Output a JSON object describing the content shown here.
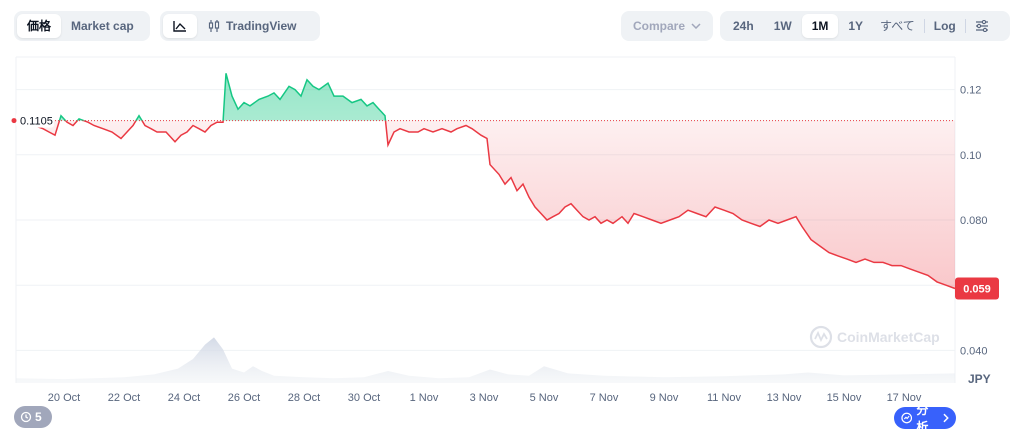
{
  "toolbar": {
    "price_tab": "価格",
    "marketcap_tab": "Market cap",
    "tradingview_label": "TradingView",
    "compare_label": "Compare",
    "ranges": [
      "24h",
      "1W",
      "1M",
      "1Y",
      "すべて"
    ],
    "active_range": "1M",
    "log_label": "Log"
  },
  "footer": {
    "events_count": "5",
    "analysis_label": "分析"
  },
  "watermark": "CoinMarketCap",
  "chart_data": {
    "type": "area",
    "x_label": "",
    "y_label": "",
    "y_unit": "JPY",
    "ylim": [
      0.03,
      0.13
    ],
    "y_ticks": [
      0.04,
      0.06,
      0.08,
      0.1,
      0.12
    ],
    "y_tick_labels": [
      "0.040",
      "0.060",
      "0.080",
      "0.10",
      "0.12"
    ],
    "x_tick_labels": [
      "20 Oct",
      "22 Oct",
      "24 Oct",
      "26 Oct",
      "28 Oct",
      "30 Oct",
      "1 Nov",
      "3 Nov",
      "5 Nov",
      "7 Nov",
      "9 Nov",
      "11 Nov",
      "13 Nov",
      "15 Nov",
      "17 Nov"
    ],
    "x_tick_day": [
      0,
      2,
      4,
      6,
      8,
      10,
      12,
      14,
      16,
      18,
      20,
      22,
      24,
      26,
      28
    ],
    "baseline": 0.1105,
    "baseline_label": "0.1105",
    "current_price": 0.059,
    "current_label": "0.059",
    "up_color": "#16c784",
    "down_color": "#ea3943",
    "series": [
      {
        "values": [
          [
            -1.6,
            0.11
          ],
          [
            -1.0,
            0.109
          ],
          [
            -0.7,
            0.108
          ],
          [
            -0.5,
            0.107
          ],
          [
            -0.3,
            0.106
          ],
          [
            -0.1,
            0.112
          ],
          [
            0.1,
            0.11
          ],
          [
            0.3,
            0.109
          ],
          [
            0.5,
            0.111
          ],
          [
            0.8,
            0.11
          ],
          [
            1.0,
            0.109
          ],
          [
            1.3,
            0.108
          ],
          [
            1.6,
            0.107
          ],
          [
            1.9,
            0.105
          ],
          [
            2.1,
            0.107
          ],
          [
            2.3,
            0.109
          ],
          [
            2.5,
            0.112
          ],
          [
            2.7,
            0.109
          ],
          [
            2.9,
            0.108
          ],
          [
            3.1,
            0.107
          ],
          [
            3.4,
            0.107
          ],
          [
            3.7,
            0.104
          ],
          [
            3.9,
            0.106
          ],
          [
            4.1,
            0.107
          ],
          [
            4.3,
            0.109
          ],
          [
            4.5,
            0.108
          ],
          [
            4.7,
            0.107
          ],
          [
            4.9,
            0.109
          ],
          [
            5.1,
            0.11
          ],
          [
            5.3,
            0.11
          ],
          [
            5.4,
            0.125
          ],
          [
            5.6,
            0.118
          ],
          [
            5.8,
            0.114
          ],
          [
            6.0,
            0.116
          ],
          [
            6.2,
            0.115
          ],
          [
            6.5,
            0.117
          ],
          [
            6.8,
            0.118
          ],
          [
            7.0,
            0.119
          ],
          [
            7.2,
            0.117
          ],
          [
            7.5,
            0.121
          ],
          [
            7.7,
            0.12
          ],
          [
            7.9,
            0.118
          ],
          [
            8.1,
            0.123
          ],
          [
            8.3,
            0.121
          ],
          [
            8.5,
            0.12
          ],
          [
            8.8,
            0.122
          ],
          [
            9.0,
            0.118
          ],
          [
            9.3,
            0.118
          ],
          [
            9.6,
            0.116
          ],
          [
            9.9,
            0.117
          ],
          [
            10.1,
            0.115
          ],
          [
            10.3,
            0.116
          ],
          [
            10.5,
            0.114
          ],
          [
            10.7,
            0.112
          ],
          [
            10.8,
            0.103
          ],
          [
            11.0,
            0.107
          ],
          [
            11.2,
            0.108
          ],
          [
            11.5,
            0.107
          ],
          [
            11.8,
            0.107
          ],
          [
            12.0,
            0.108
          ],
          [
            12.3,
            0.107
          ],
          [
            12.6,
            0.108
          ],
          [
            12.9,
            0.107
          ],
          [
            13.1,
            0.108
          ],
          [
            13.4,
            0.109
          ],
          [
            13.6,
            0.108
          ],
          [
            13.9,
            0.106
          ],
          [
            14.1,
            0.105
          ],
          [
            14.2,
            0.097
          ],
          [
            14.5,
            0.094
          ],
          [
            14.7,
            0.091
          ],
          [
            14.9,
            0.093
          ],
          [
            15.1,
            0.089
          ],
          [
            15.3,
            0.091
          ],
          [
            15.5,
            0.087
          ],
          [
            15.7,
            0.084
          ],
          [
            15.9,
            0.082
          ],
          [
            16.1,
            0.08
          ],
          [
            16.3,
            0.081
          ],
          [
            16.5,
            0.082
          ],
          [
            16.7,
            0.084
          ],
          [
            16.9,
            0.085
          ],
          [
            17.1,
            0.083
          ],
          [
            17.3,
            0.081
          ],
          [
            17.5,
            0.08
          ],
          [
            17.7,
            0.081
          ],
          [
            17.9,
            0.079
          ],
          [
            18.1,
            0.08
          ],
          [
            18.3,
            0.079
          ],
          [
            18.6,
            0.081
          ],
          [
            18.8,
            0.079
          ],
          [
            19.0,
            0.082
          ],
          [
            19.3,
            0.081
          ],
          [
            19.6,
            0.08
          ],
          [
            19.9,
            0.079
          ],
          [
            20.2,
            0.08
          ],
          [
            20.5,
            0.081
          ],
          [
            20.8,
            0.083
          ],
          [
            21.1,
            0.082
          ],
          [
            21.4,
            0.081
          ],
          [
            21.7,
            0.084
          ],
          [
            22.0,
            0.083
          ],
          [
            22.3,
            0.082
          ],
          [
            22.6,
            0.08
          ],
          [
            22.9,
            0.079
          ],
          [
            23.2,
            0.078
          ],
          [
            23.5,
            0.08
          ],
          [
            23.8,
            0.079
          ],
          [
            24.1,
            0.08
          ],
          [
            24.4,
            0.081
          ],
          [
            24.6,
            0.078
          ],
          [
            24.9,
            0.074
          ],
          [
            25.2,
            0.072
          ],
          [
            25.5,
            0.07
          ],
          [
            25.8,
            0.069
          ],
          [
            26.1,
            0.068
          ],
          [
            26.4,
            0.067
          ],
          [
            26.7,
            0.068
          ],
          [
            27.0,
            0.067
          ],
          [
            27.3,
            0.067
          ],
          [
            27.6,
            0.066
          ],
          [
            27.9,
            0.066
          ],
          [
            28.2,
            0.065
          ],
          [
            28.5,
            0.064
          ],
          [
            28.8,
            0.063
          ],
          [
            29.1,
            0.061
          ],
          [
            29.4,
            0.06
          ],
          [
            29.7,
            0.059
          ]
        ]
      }
    ],
    "volume_profile": [
      [
        -1.6,
        0.1
      ],
      [
        0.0,
        0.08
      ],
      [
        1.0,
        0.1
      ],
      [
        2.0,
        0.12
      ],
      [
        3.0,
        0.18
      ],
      [
        3.8,
        0.3
      ],
      [
        4.3,
        0.5
      ],
      [
        4.7,
        0.8
      ],
      [
        5.0,
        0.95
      ],
      [
        5.3,
        0.7
      ],
      [
        5.6,
        0.3
      ],
      [
        6.0,
        0.22
      ],
      [
        6.3,
        0.35
      ],
      [
        6.6,
        0.25
      ],
      [
        7.0,
        0.15
      ],
      [
        8.0,
        0.12
      ],
      [
        9.0,
        0.1
      ],
      [
        10.0,
        0.12
      ],
      [
        10.8,
        0.25
      ],
      [
        11.5,
        0.15
      ],
      [
        12.5,
        0.1
      ],
      [
        13.5,
        0.12
      ],
      [
        14.2,
        0.28
      ],
      [
        14.8,
        0.18
      ],
      [
        15.5,
        0.15
      ],
      [
        16.0,
        0.35
      ],
      [
        16.8,
        0.2
      ],
      [
        18.0,
        0.15
      ],
      [
        20.0,
        0.12
      ],
      [
        22.0,
        0.14
      ],
      [
        24.0,
        0.18
      ],
      [
        24.8,
        0.22
      ],
      [
        26.0,
        0.16
      ],
      [
        28.0,
        0.18
      ],
      [
        29.7,
        0.2
      ]
    ]
  }
}
